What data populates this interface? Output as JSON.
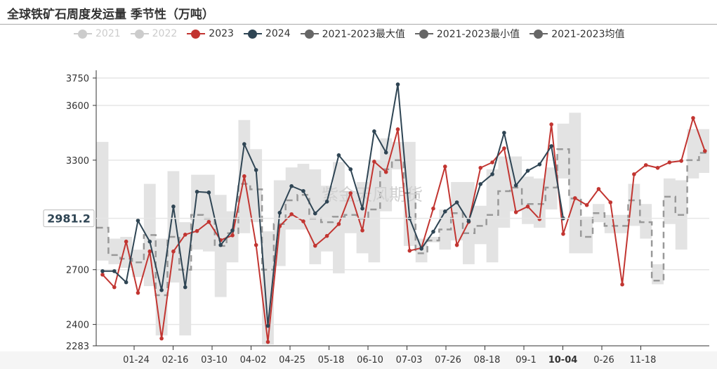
{
  "title": "全球铁矿石周度发运量 季节性（万吨）",
  "watermark": "紫金天风期货",
  "colors": {
    "c2021": "#cccccc",
    "c2022": "#cccccc",
    "c2023": "#c23531",
    "c2024": "#2f4554",
    "stat": "#666666",
    "band": "#e3e3e3",
    "mean": "#999999"
  },
  "chart_data": {
    "type": "line",
    "title": "全球铁矿石周度发运量 季节性（万吨）",
    "legend": [
      {
        "name": "2021",
        "active": false
      },
      {
        "name": "2022",
        "active": false
      },
      {
        "name": "2023",
        "active": true
      },
      {
        "name": "2024",
        "active": true
      },
      {
        "name": "2021-2023最大值",
        "active": true
      },
      {
        "name": "2021-2023最小值",
        "active": true
      },
      {
        "name": "2021-2023均值",
        "active": true
      }
    ],
    "legend_position": "top",
    "ylim": [
      2283,
      3750
    ],
    "yticks": [
      "3750",
      "3600",
      "3300",
      "2700",
      "2400",
      "2283"
    ],
    "ytick_values": [
      3750,
      3600,
      3300,
      2700,
      2400,
      2283
    ],
    "xticks": [
      "01-24",
      "02-16",
      "03-10",
      "04-02",
      "04-25",
      "05-18",
      "06-10",
      "07-03",
      "07-26",
      "08-18",
      "09-1",
      "10-04",
      "0-26",
      "11-18"
    ],
    "cursor": {
      "y_value": "2981.2",
      "x_label": "10-04"
    },
    "series": [
      {
        "name": "2023",
        "values": [
          2673,
          2604,
          2854,
          2573,
          2800,
          2323,
          2800,
          2892,
          2912,
          2962,
          2862,
          2888,
          3212,
          2835,
          2304,
          2938,
          3004,
          2965,
          2831,
          2885,
          2950,
          3119,
          2915,
          3292,
          3235,
          3469,
          2804,
          2819,
          3035,
          3265,
          2835,
          2962,
          3258,
          3288,
          3365,
          3015,
          3046,
          2977,
          3496,
          2896,
          3092,
          3054,
          3142,
          3069,
          2619,
          3223,
          3273,
          3258,
          3288,
          3296,
          3531,
          3350
        ]
      },
      {
        "name": "2024",
        "values": [
          2692,
          2692,
          2631,
          2969,
          2854,
          2588,
          3046,
          2604,
          3127,
          3123,
          2835,
          2915,
          3388,
          3246,
          2392,
          3012,
          3158,
          3131,
          3008,
          3073,
          3327,
          3250,
          3035,
          3458,
          3342,
          3715,
          2981,
          2815,
          2908,
          3019,
          3069,
          2965,
          3169,
          3223,
          3450,
          3162,
          3242,
          3277,
          3377,
          2981
        ]
      },
      {
        "name": "2021-2023最大值",
        "values": [
          3400,
          2870,
          2880,
          2810,
          3170,
          2870,
          3240,
          2960,
          3220,
          3220,
          3110,
          3020,
          3520,
          3360,
          2910,
          3190,
          3260,
          3280,
          3250,
          3160,
          3290,
          3130,
          3180,
          3300,
          3420,
          3400,
          3400,
          2870,
          2880,
          3030,
          3180,
          3180,
          3050,
          3250,
          3320,
          3320,
          3210,
          3200,
          3260,
          3500,
          3560,
          2990,
          3060,
          3000,
          3000,
          3170,
          3060,
          2730,
          3200,
          3190,
          3470,
          3470
        ]
      },
      {
        "name": "2021-2023最小值",
        "values": [
          2750,
          2730,
          2710,
          2660,
          2610,
          2340,
          2630,
          2340,
          2810,
          2800,
          2550,
          2740,
          2900,
          2960,
          2290,
          2720,
          2920,
          2920,
          2730,
          2800,
          2680,
          2900,
          2790,
          2740,
          3020,
          3250,
          2830,
          2740,
          2850,
          2810,
          2860,
          2730,
          2840,
          2740,
          2930,
          3020,
          2950,
          2930,
          3030,
          3200,
          2790,
          2790,
          2960,
          2900,
          2900,
          2940,
          2870,
          2620,
          2950,
          2810,
          3200,
          3230
        ]
      },
      {
        "name": "2021-2023均值",
        "values": [
          2930,
          2780,
          2760,
          2740,
          2890,
          2560,
          2880,
          2700,
          3000,
          2980,
          2830,
          2900,
          3170,
          3140,
          2700,
          2950,
          3080,
          3110,
          2980,
          2960,
          2990,
          3000,
          2980,
          3030,
          3250,
          3300,
          3120,
          2790,
          2860,
          2920,
          3010,
          2900,
          2940,
          3000,
          3130,
          3150,
          3060,
          3060,
          3150,
          3360,
          3090,
          2880,
          3010,
          2940,
          2940,
          3080,
          2960,
          2640,
          3100,
          3000,
          3300,
          3340
        ]
      }
    ]
  }
}
